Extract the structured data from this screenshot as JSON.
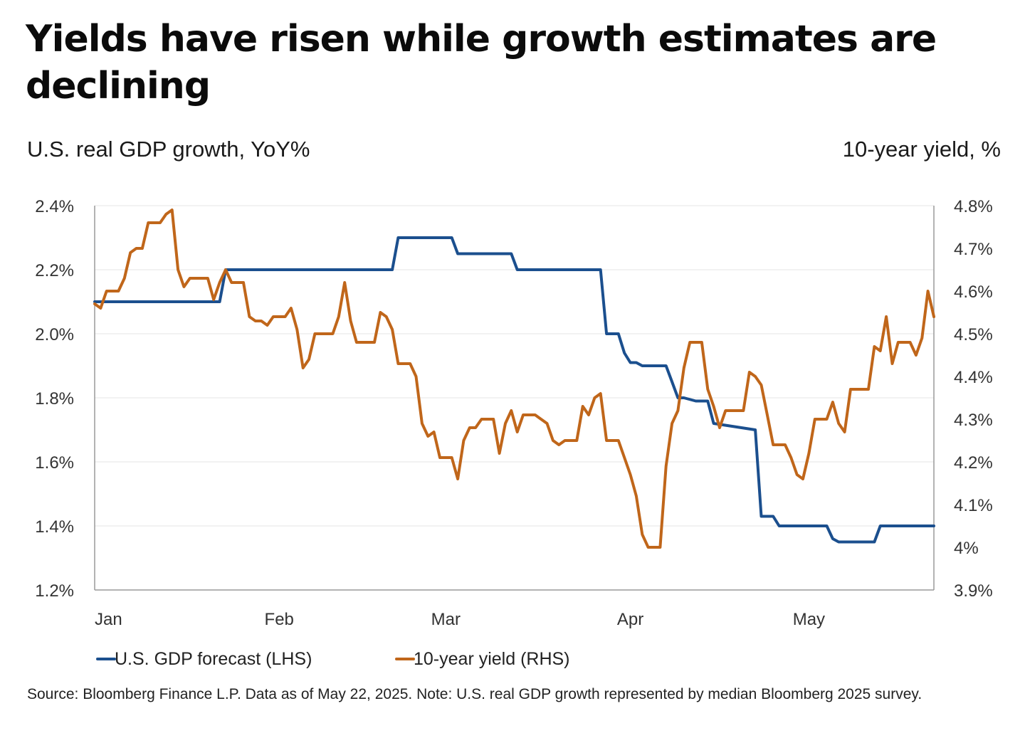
{
  "header": {
    "title": "Yields have risen while growth estimates are declining",
    "left_axis_title": "U.S. real GDP growth, YoY%",
    "right_axis_title": "10-year yield, %"
  },
  "footer": {
    "source": "Source: Bloomberg Finance L.P. Data as of May 22, 2025. Note: U.S. real GDP growth represented by median Bloomberg 2025 survey."
  },
  "colors": {
    "gdp": "#1B4F8E",
    "yield": "#C0661A",
    "grid": "#e6e6e6",
    "axis": "#9a9a9a"
  },
  "chart_data": {
    "type": "line",
    "title": "Yields have risen while growth estimates are declining",
    "ylabel": "U.S. real GDP growth, YoY%",
    "y2label": "10-year yield, %",
    "xlim": [
      0,
      141
    ],
    "ylim": [
      1.2,
      2.4
    ],
    "y2lim": [
      3.9,
      4.8
    ],
    "y_ticks": [
      1.2,
      1.4,
      1.6,
      1.8,
      2.0,
      2.2,
      2.4
    ],
    "y_tick_labels": [
      "1.2%",
      "1.4%",
      "1.6%",
      "1.8%",
      "2.0%",
      "2.2%",
      "2.4%"
    ],
    "y2_ticks": [
      3.9,
      4.0,
      4.1,
      4.2,
      4.3,
      4.4,
      4.5,
      4.6,
      4.7,
      4.8
    ],
    "y2_tick_labels": [
      "3.9%",
      "4%",
      "4.1%",
      "4.2%",
      "4.3%",
      "4.4%",
      "4.5%",
      "4.6%",
      "4.7%",
      "4.8%"
    ],
    "x_ticks": [
      {
        "x": 0,
        "label": "Jan"
      },
      {
        "x": 31,
        "label": "Feb"
      },
      {
        "x": 59,
        "label": "Mar"
      },
      {
        "x": 90,
        "label": "Apr"
      },
      {
        "x": 120,
        "label": "May"
      }
    ],
    "grid": true,
    "legend_position": "bottom-left",
    "series": [
      {
        "name": "U.S. GDP forecast (LHS)",
        "axis": "left",
        "color": "#1B4F8E",
        "x": [
          0,
          21,
          22,
          50,
          51,
          60,
          61,
          70,
          71,
          85,
          86,
          88,
          89,
          90,
          91,
          92,
          93,
          96,
          97,
          98,
          99,
          101,
          102,
          103,
          104,
          111,
          112,
          114,
          115,
          123,
          124,
          125,
          126,
          131,
          132,
          141
        ],
        "values": [
          2.1,
          2.1,
          2.2,
          2.2,
          2.3,
          2.3,
          2.25,
          2.25,
          2.2,
          2.2,
          2.0,
          2.0,
          1.94,
          1.91,
          1.91,
          1.9,
          1.9,
          1.9,
          1.85,
          1.8,
          1.8,
          1.79,
          1.79,
          1.79,
          1.72,
          1.7,
          1.43,
          1.43,
          1.4,
          1.4,
          1.36,
          1.35,
          1.35,
          1.35,
          1.4,
          1.4
        ]
      },
      {
        "name": "10-year yield (RHS)",
        "axis": "right",
        "color": "#C0661A",
        "x": [
          0,
          1,
          2,
          3,
          4,
          5,
          6,
          7,
          8,
          9,
          10,
          11,
          12,
          13,
          14,
          15,
          16,
          17,
          18,
          19,
          20,
          21,
          22,
          23,
          24,
          25,
          26,
          27,
          28,
          29,
          30,
          31,
          32,
          33,
          34,
          35,
          36,
          37,
          38,
          39,
          40,
          41,
          42,
          43,
          44,
          45,
          46,
          47,
          48,
          49,
          50,
          51,
          52,
          53,
          54,
          55,
          56,
          57,
          58,
          59,
          60,
          61,
          62,
          63,
          64,
          65,
          66,
          67,
          68,
          69,
          70,
          71,
          72,
          73,
          74,
          75,
          76,
          77,
          78,
          79,
          80,
          81,
          82,
          83,
          84,
          85,
          86,
          87,
          88,
          89,
          90,
          91,
          92,
          93,
          94,
          95,
          96,
          97,
          98,
          99,
          100,
          101,
          102,
          103,
          104,
          105,
          106,
          107,
          108,
          109,
          110,
          111,
          112,
          113,
          114,
          115,
          116,
          117,
          118,
          119,
          120,
          121,
          122,
          123,
          124,
          125,
          126,
          127,
          128,
          129,
          130,
          131,
          132,
          133,
          134,
          135,
          136,
          137,
          138,
          139,
          140,
          141
        ],
        "values": [
          4.57,
          4.56,
          4.6,
          4.6,
          4.6,
          4.63,
          4.69,
          4.7,
          4.7,
          4.76,
          4.76,
          4.76,
          4.78,
          4.79,
          4.65,
          4.61,
          4.63,
          4.63,
          4.63,
          4.63,
          4.58,
          4.62,
          4.65,
          4.62,
          4.62,
          4.62,
          4.54,
          4.53,
          4.53,
          4.52,
          4.54,
          4.54,
          4.54,
          4.56,
          4.51,
          4.42,
          4.44,
          4.5,
          4.5,
          4.5,
          4.5,
          4.54,
          4.62,
          4.53,
          4.48,
          4.48,
          4.48,
          4.48,
          4.55,
          4.54,
          4.51,
          4.43,
          4.43,
          4.43,
          4.4,
          4.29,
          4.26,
          4.27,
          4.21,
          4.21,
          4.21,
          4.16,
          4.25,
          4.28,
          4.28,
          4.3,
          4.3,
          4.3,
          4.22,
          4.29,
          4.32,
          4.27,
          4.31,
          4.31,
          4.31,
          4.3,
          4.29,
          4.25,
          4.24,
          4.25,
          4.25,
          4.25,
          4.33,
          4.31,
          4.35,
          4.36,
          4.25,
          4.25,
          4.25,
          4.21,
          4.17,
          4.12,
          4.03,
          4.0,
          4.0,
          4.0,
          4.19,
          4.29,
          4.32,
          4.42,
          4.48,
          4.48,
          4.48,
          4.37,
          4.33,
          4.28,
          4.32,
          4.32,
          4.32,
          4.32,
          4.41,
          4.4,
          4.38,
          4.31,
          4.24,
          4.24,
          4.24,
          4.21,
          4.17,
          4.16,
          4.22,
          4.3,
          4.3,
          4.3,
          4.34,
          4.29,
          4.27,
          4.37,
          4.37,
          4.37,
          4.37,
          4.47,
          4.46,
          4.54,
          4.43,
          4.48,
          4.48,
          4.48,
          4.45,
          4.49,
          4.6,
          4.54
        ]
      }
    ]
  }
}
